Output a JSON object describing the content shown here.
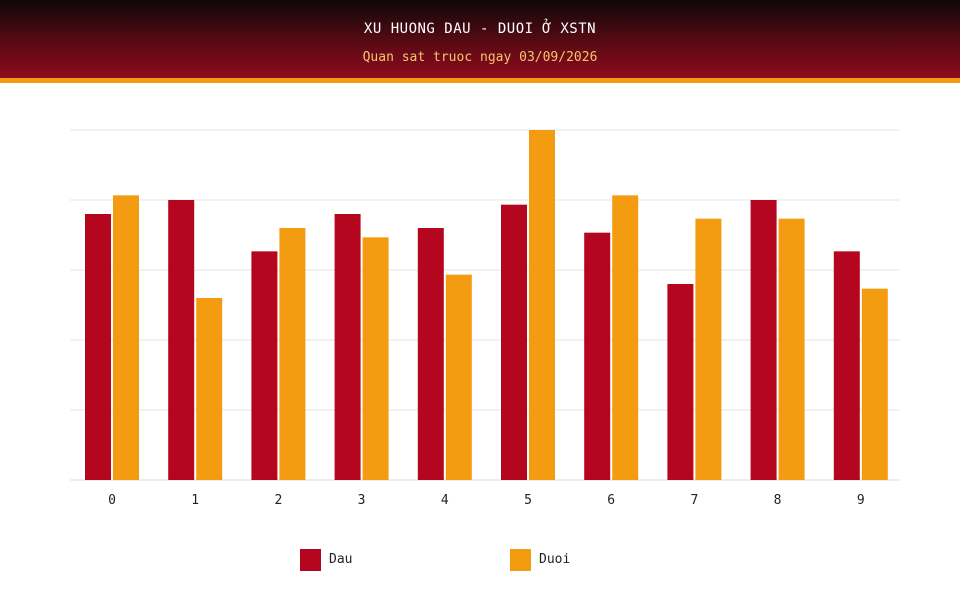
{
  "header": {
    "title": "XU HUONG DAU - DUOI Ở XSTN",
    "subtitle": "Quan sat truoc ngay 03/09/2026"
  },
  "colors": {
    "dau": "#b5061f",
    "duoi": "#f39c12",
    "subtitle": "#f7c66b"
  },
  "legend": {
    "dau_label": "Dau",
    "duoi_label": "Duoi"
  },
  "chart_data": {
    "type": "bar",
    "categories": [
      "0",
      "1",
      "2",
      "3",
      "4",
      "5",
      "6",
      "7",
      "8",
      "9"
    ],
    "series": [
      {
        "name": "Dau",
        "values": [
          11.4,
          12.0,
          9.8,
          11.4,
          10.8,
          11.8,
          10.6,
          8.4,
          12.0,
          9.8
        ]
      },
      {
        "name": "Duoi",
        "values": [
          12.2,
          7.8,
          10.8,
          10.4,
          8.8,
          15.0,
          12.2,
          11.2,
          11.2,
          8.2
        ]
      }
    ],
    "ylim": [
      0,
      15
    ],
    "y_gridlines": 5,
    "grid": true,
    "y_tick_labels_shown": false,
    "legend_position": "bottom-center"
  }
}
